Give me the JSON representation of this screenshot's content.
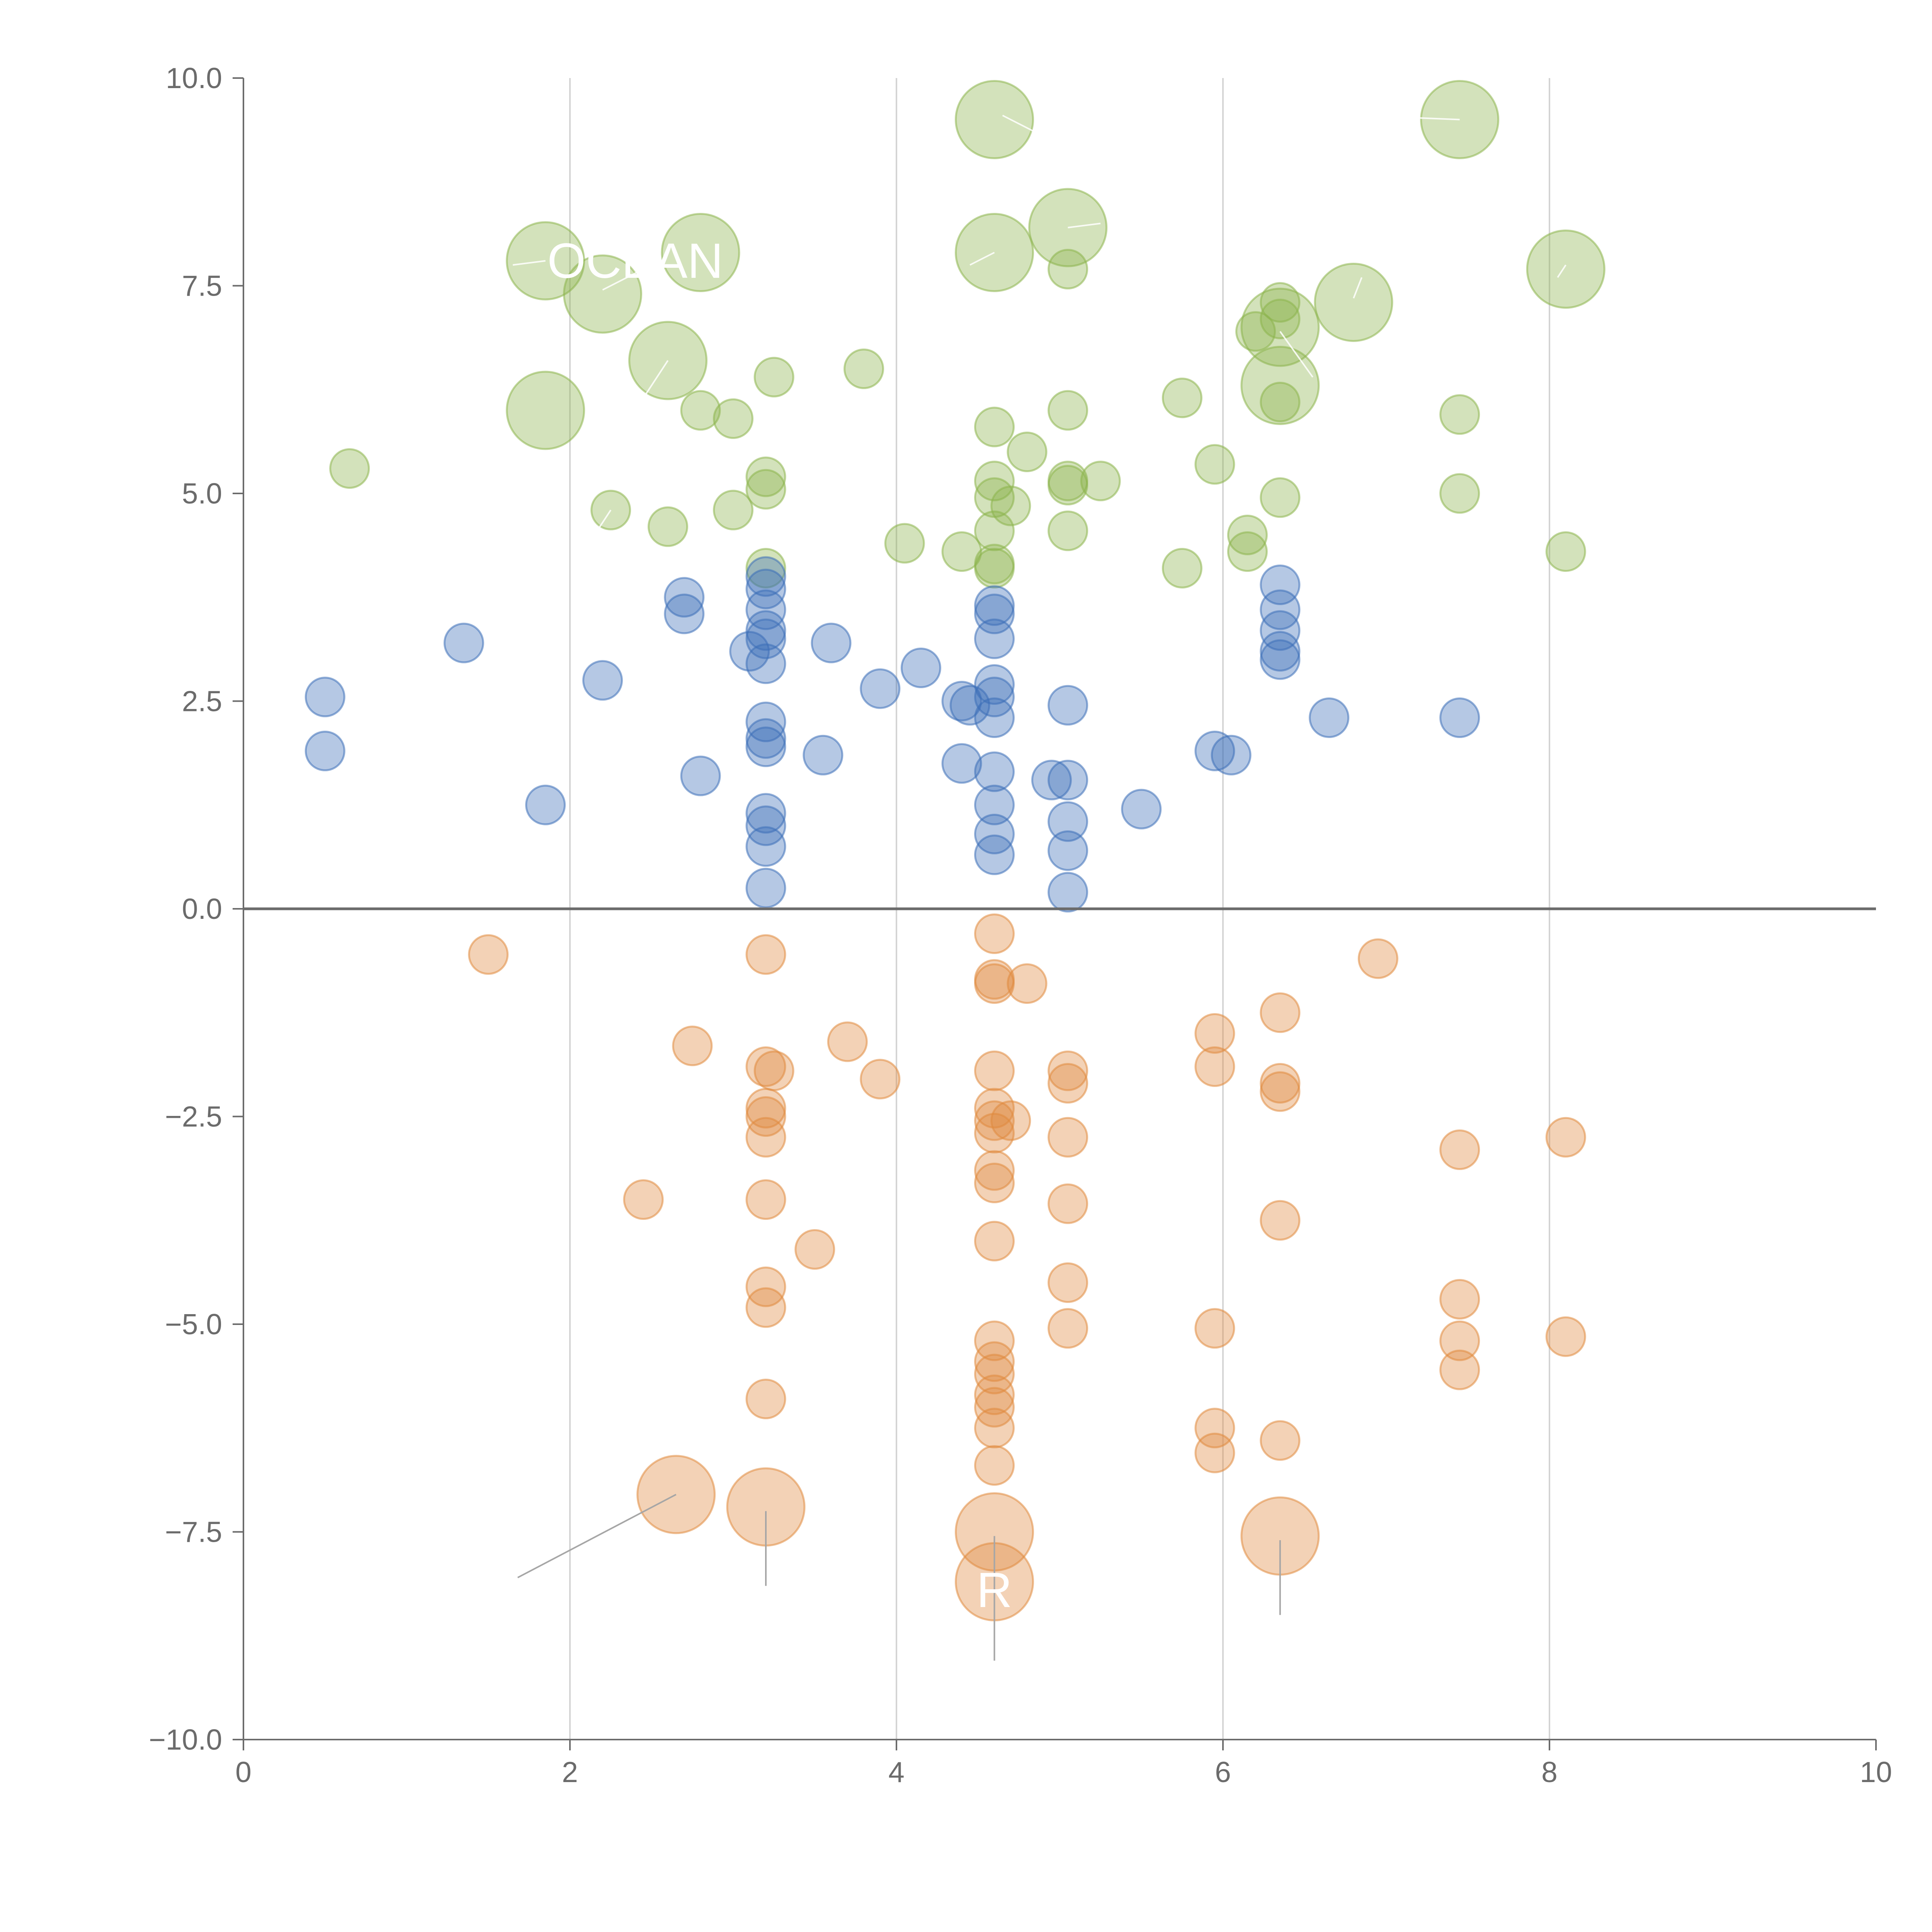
{
  "chart_data": {
    "type": "scatter",
    "title": "",
    "xlabel": "",
    "ylabel": "",
    "xlim": [
      0,
      10
    ],
    "ylim": [
      -10,
      10
    ],
    "x_ticks": [
      "0",
      "2",
      "4",
      "6",
      "8",
      "10"
    ],
    "y_ticks": [
      "−10.0",
      "−7.5",
      "−5.0",
      "−2.5",
      "0.0",
      "2.5",
      "5.0",
      "7.5",
      "10.0"
    ],
    "x_gridlines": [
      2,
      4,
      6,
      8
    ],
    "zero_line": 0,
    "legend": "none",
    "colors": {
      "green": "#8cb44d",
      "blue": "#3c6fb8",
      "orange": "#e08a3e",
      "axis": "#6b6b6b",
      "grid": "#d4d4d4",
      "leader": "#a6a6a6"
    },
    "point_labels": [
      {
        "text": "OCEAN",
        "x": 2.4,
        "y": 7.8
      },
      {
        "text": "R",
        "x": 4.6,
        "y": -8.2
      }
    ],
    "series": [
      {
        "color": "green",
        "points": [
          [
            1.85,
            7.8,
            2
          ],
          [
            2.2,
            7.4,
            2
          ],
          [
            2.8,
            7.9,
            2
          ],
          [
            2.6,
            6.6,
            2
          ],
          [
            1.85,
            6.0,
            2
          ],
          [
            4.6,
            9.5,
            2
          ],
          [
            4.6,
            7.9,
            2
          ],
          [
            5.05,
            8.2,
            2
          ],
          [
            7.45,
            9.5,
            2
          ],
          [
            8.1,
            7.7,
            2
          ],
          [
            6.8,
            7.3,
            2
          ],
          [
            6.35,
            7.0,
            2
          ],
          [
            6.35,
            6.3,
            2
          ],
          [
            0.65,
            5.3,
            1
          ],
          [
            2.8,
            6.0,
            1
          ],
          [
            3.0,
            5.9,
            1
          ],
          [
            3.25,
            6.4,
            1
          ],
          [
            3.8,
            6.5,
            1
          ],
          [
            2.25,
            4.8,
            1
          ],
          [
            2.6,
            4.6,
            1
          ],
          [
            3.0,
            4.8,
            1
          ],
          [
            3.2,
            5.2,
            1
          ],
          [
            3.2,
            5.05,
            1
          ],
          [
            3.2,
            4.1,
            1
          ],
          [
            4.05,
            4.4,
            1
          ],
          [
            4.4,
            4.3,
            1
          ],
          [
            4.6,
            5.8,
            1
          ],
          [
            4.6,
            5.15,
            1
          ],
          [
            4.6,
            4.95,
            1
          ],
          [
            4.7,
            4.85,
            1
          ],
          [
            4.6,
            4.55,
            1
          ],
          [
            4.6,
            4.15,
            1
          ],
          [
            4.6,
            4.1,
            1
          ],
          [
            4.8,
            5.5,
            1
          ],
          [
            5.05,
            7.7,
            1
          ],
          [
            5.05,
            6.0,
            1
          ],
          [
            5.05,
            5.15,
            1
          ],
          [
            5.05,
            5.1,
            1
          ],
          [
            5.05,
            4.55,
            1
          ],
          [
            5.25,
            5.15,
            1
          ],
          [
            5.75,
            6.15,
            1
          ],
          [
            5.75,
            4.1,
            1
          ],
          [
            5.95,
            5.35,
            1
          ],
          [
            6.15,
            4.5,
            1
          ],
          [
            6.15,
            4.3,
            1
          ],
          [
            6.2,
            6.95,
            1
          ],
          [
            6.35,
            7.3,
            1
          ],
          [
            6.35,
            7.1,
            1
          ],
          [
            6.35,
            6.1,
            1
          ],
          [
            6.35,
            4.95,
            1
          ],
          [
            7.45,
            5.95,
            1
          ],
          [
            7.45,
            5.0,
            1
          ],
          [
            8.1,
            4.3,
            1
          ]
        ]
      },
      {
        "color": "blue",
        "points": [
          [
            0.5,
            2.55,
            1
          ],
          [
            0.5,
            1.9,
            1
          ],
          [
            1.35,
            3.2,
            1
          ],
          [
            1.85,
            1.25,
            1
          ],
          [
            2.2,
            2.75,
            1
          ],
          [
            2.7,
            3.75,
            1
          ],
          [
            2.7,
            3.55,
            1
          ],
          [
            2.8,
            1.6,
            1
          ],
          [
            3.1,
            3.1,
            1
          ],
          [
            3.2,
            4.0,
            1
          ],
          [
            3.2,
            3.85,
            1
          ],
          [
            3.2,
            3.6,
            1
          ],
          [
            3.2,
            3.35,
            1
          ],
          [
            3.2,
            3.25,
            1
          ],
          [
            3.2,
            2.95,
            1
          ],
          [
            3.2,
            2.25,
            1
          ],
          [
            3.2,
            2.05,
            1
          ],
          [
            3.2,
            1.95,
            1
          ],
          [
            3.2,
            1.15,
            1
          ],
          [
            3.2,
            1.0,
            1
          ],
          [
            3.2,
            0.75,
            1
          ],
          [
            3.2,
            0.25,
            1
          ],
          [
            3.55,
            1.85,
            1
          ],
          [
            3.6,
            3.2,
            1
          ],
          [
            3.9,
            2.65,
            1
          ],
          [
            4.15,
            2.9,
            1
          ],
          [
            4.4,
            2.5,
            1
          ],
          [
            4.45,
            2.45,
            1
          ],
          [
            4.4,
            1.75,
            1
          ],
          [
            4.6,
            3.65,
            1
          ],
          [
            4.6,
            3.55,
            1
          ],
          [
            4.6,
            3.25,
            1
          ],
          [
            4.6,
            2.7,
            1
          ],
          [
            4.6,
            2.55,
            1
          ],
          [
            4.6,
            2.3,
            1
          ],
          [
            4.6,
            1.65,
            1
          ],
          [
            4.6,
            1.25,
            1
          ],
          [
            4.6,
            0.9,
            1
          ],
          [
            4.6,
            0.65,
            1
          ],
          [
            4.95,
            1.55,
            1
          ],
          [
            5.05,
            2.45,
            1
          ],
          [
            5.05,
            1.55,
            1
          ],
          [
            5.05,
            1.05,
            1
          ],
          [
            5.05,
            0.7,
            1
          ],
          [
            5.05,
            0.2,
            1
          ],
          [
            5.5,
            1.2,
            1
          ],
          [
            5.95,
            1.9,
            1
          ],
          [
            6.05,
            1.85,
            1
          ],
          [
            6.35,
            3.9,
            1
          ],
          [
            6.35,
            3.6,
            1
          ],
          [
            6.35,
            3.35,
            1
          ],
          [
            6.35,
            3.1,
            1
          ],
          [
            6.35,
            3.0,
            1
          ],
          [
            6.65,
            2.3,
            1
          ],
          [
            7.45,
            2.3,
            1
          ]
        ]
      },
      {
        "color": "orange",
        "points": [
          [
            1.5,
            -0.55,
            1
          ],
          [
            2.45,
            -3.5,
            1
          ],
          [
            2.75,
            -1.65,
            1
          ],
          [
            3.2,
            -0.55,
            1
          ],
          [
            3.2,
            -1.9,
            1
          ],
          [
            3.25,
            -1.95,
            1
          ],
          [
            3.2,
            -2.4,
            1
          ],
          [
            3.2,
            -2.5,
            1
          ],
          [
            3.2,
            -2.75,
            1
          ],
          [
            3.2,
            -3.5,
            1
          ],
          [
            3.2,
            -4.55,
            1
          ],
          [
            3.2,
            -4.8,
            1
          ],
          [
            3.2,
            -5.9,
            1
          ],
          [
            3.5,
            -4.1,
            1
          ],
          [
            3.7,
            -1.6,
            1
          ],
          [
            3.9,
            -2.05,
            1
          ],
          [
            4.6,
            -0.3,
            1
          ],
          [
            4.6,
            -0.85,
            1
          ],
          [
            4.6,
            -0.9,
            1
          ],
          [
            4.8,
            -0.9,
            1
          ],
          [
            4.6,
            -1.95,
            1
          ],
          [
            4.6,
            -2.4,
            1
          ],
          [
            4.6,
            -2.55,
            1
          ],
          [
            4.6,
            -2.7,
            1
          ],
          [
            4.7,
            -2.55,
            1
          ],
          [
            4.6,
            -3.15,
            1
          ],
          [
            4.6,
            -3.3,
            1
          ],
          [
            4.6,
            -4.0,
            1
          ],
          [
            4.6,
            -5.2,
            1
          ],
          [
            4.6,
            -5.45,
            1
          ],
          [
            4.6,
            -5.6,
            1
          ],
          [
            4.6,
            -5.85,
            1
          ],
          [
            4.6,
            -6.0,
            1
          ],
          [
            4.6,
            -6.25,
            1
          ],
          [
            4.6,
            -6.7,
            1
          ],
          [
            5.05,
            -1.95,
            1
          ],
          [
            5.05,
            -2.1,
            1
          ],
          [
            5.05,
            -2.75,
            1
          ],
          [
            5.05,
            -3.55,
            1
          ],
          [
            5.05,
            -4.5,
            1
          ],
          [
            5.05,
            -5.05,
            1
          ],
          [
            5.95,
            -1.5,
            1
          ],
          [
            5.95,
            -1.9,
            1
          ],
          [
            5.95,
            -5.05,
            1
          ],
          [
            5.95,
            -6.25,
            1
          ],
          [
            5.95,
            -6.55,
            1
          ],
          [
            6.35,
            -1.25,
            1
          ],
          [
            6.35,
            -2.1,
            1
          ],
          [
            6.35,
            -2.2,
            1
          ],
          [
            6.35,
            -3.75,
            1
          ],
          [
            6.35,
            -6.4,
            1
          ],
          [
            6.95,
            -0.6,
            1
          ],
          [
            7.45,
            -2.9,
            1
          ],
          [
            7.45,
            -4.7,
            1
          ],
          [
            7.45,
            -5.2,
            1
          ],
          [
            7.45,
            -5.55,
            1
          ],
          [
            8.1,
            -2.75,
            1
          ],
          [
            8.1,
            -5.15,
            1
          ],
          [
            2.65,
            -7.05,
            2
          ],
          [
            3.2,
            -7.2,
            2
          ],
          [
            4.6,
            -7.5,
            2
          ],
          [
            4.6,
            -8.1,
            2
          ],
          [
            6.35,
            -7.55,
            2
          ]
        ]
      }
    ]
  }
}
